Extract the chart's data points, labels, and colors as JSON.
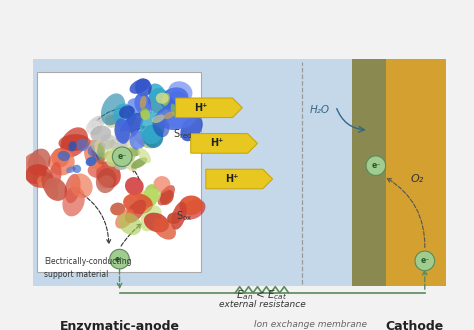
{
  "bg_color": "#f0f0f0",
  "anode_bg": "#c5d8ea",
  "cathode_bg": "#d4a030",
  "membrane_bg": "#8a8a50",
  "white_box_bg": "#ffffff",
  "wire_color": "#5a8a5a",
  "electron_fill": "#a0cc90",
  "electron_edge": "#5a8a5a",
  "hplus_fill": "#e8c820",
  "hplus_edge": "#c8a000",
  "text_dark": "#222222",
  "text_gray": "#666666",
  "text_blue": "#336688",
  "dashed_color": "#555555",
  "label_anode": "Enzymatic-anode",
  "label_cathode": "Cathode",
  "label_membrane": "Ion exchange membrane\nor separator",
  "label_support": "Electrically-conducting\nsupport material",
  "label_external": "external resistance",
  "label_h2o": "H₂O",
  "label_o2": "O₂",
  "figsize": [
    4.74,
    3.3
  ],
  "dpi": 100
}
